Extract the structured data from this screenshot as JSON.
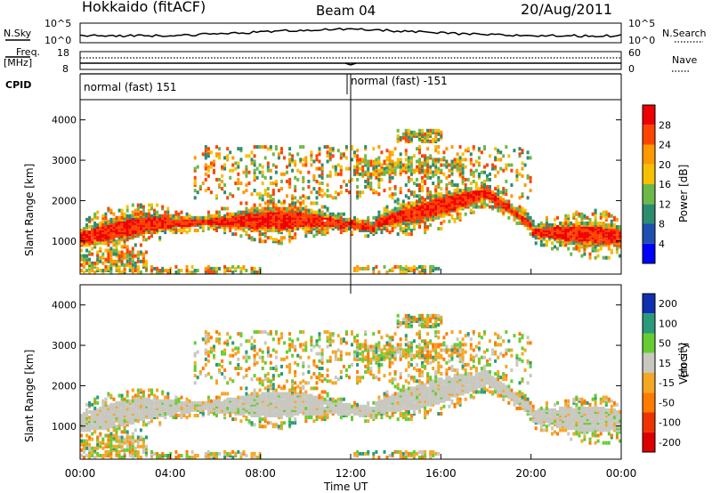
{
  "header": {
    "station": "Hokkaido (fitACF)",
    "beam": "Beam 04",
    "date": "20/Aug/2011"
  },
  "top_panels": {
    "nsky_label": "N.Sky",
    "nsearch_label": "N.Search",
    "nsky_ticks": [
      "10^5",
      "10^0"
    ],
    "nsky_right_ticks": [
      "10^5",
      "10^0"
    ],
    "freq_label_1": "Freq.",
    "freq_label_2": "[MHz]",
    "freq_ticks": [
      "18",
      "8"
    ],
    "nave_ticks": [
      "60",
      "0"
    ],
    "nave_label": "Nave",
    "cpid_label": "CPID",
    "cpid_segments": [
      "normal (fast) 151",
      "normal (fast) -151"
    ]
  },
  "chart_data": [
    {
      "type": "heatmap",
      "title": "",
      "quantity": "Power",
      "ylabel": "Slant Range [km]",
      "xlabel": "",
      "x_range_hours": [
        0,
        24
      ],
      "ylim": [
        180,
        4500
      ],
      "y_ticks": [
        1000,
        2000,
        3000,
        4000
      ],
      "colorbar_label": "Power [dB]",
      "colorbar_ticks": [
        "4",
        "8",
        "12",
        "16",
        "20",
        "24",
        "28"
      ],
      "colorbar_colors": [
        "#0000ff",
        "#1f4fb0",
        "#2c8c6e",
        "#6cb84a",
        "#f5c000",
        "#ff9900",
        "#ff4400",
        "#ee0000"
      ],
      "dominant_value": "20-32 dB (red/orange) in main band near 1000-1700 km"
    },
    {
      "type": "heatmap",
      "title": "",
      "quantity": "Velocity",
      "ylabel": "Slant Range [km]",
      "xlabel": "Time UT",
      "x_ticks": [
        "00:00",
        "04:00",
        "08:00",
        "12:00",
        "16:00",
        "20:00",
        "00:00"
      ],
      "x_range_hours": [
        0,
        24
      ],
      "ylim": [
        180,
        4500
      ],
      "y_ticks": [
        1000,
        2000,
        3000,
        4000
      ],
      "colorbar_label": "Velocity [m s^-1]",
      "colorbar_ticks": [
        "200",
        "100",
        "50",
        "15",
        "-15",
        "-50",
        "-100",
        "-200"
      ],
      "colorbar_colors": [
        "#1030b0",
        "#2a9a7a",
        "#66cc33",
        "#c8c8c0",
        "#f5a623",
        "#ff7b00",
        "#ee3300",
        "#dd0000"
      ],
      "dominant_value": "-15 to 15 m/s (grey) ground scatter"
    }
  ],
  "axis": {
    "x_ticks": [
      "00:00",
      "04:00",
      "08:00",
      "12:00",
      "16:00",
      "20:00",
      "00:00"
    ],
    "xlabel": "Time UT",
    "y_ticks": [
      "1000",
      "2000",
      "3000",
      "4000"
    ],
    "ylabel": "Slant Range [km]",
    "power_cbar_label": "Power [dB]",
    "velocity_cbar_label": "Velocity"
  }
}
